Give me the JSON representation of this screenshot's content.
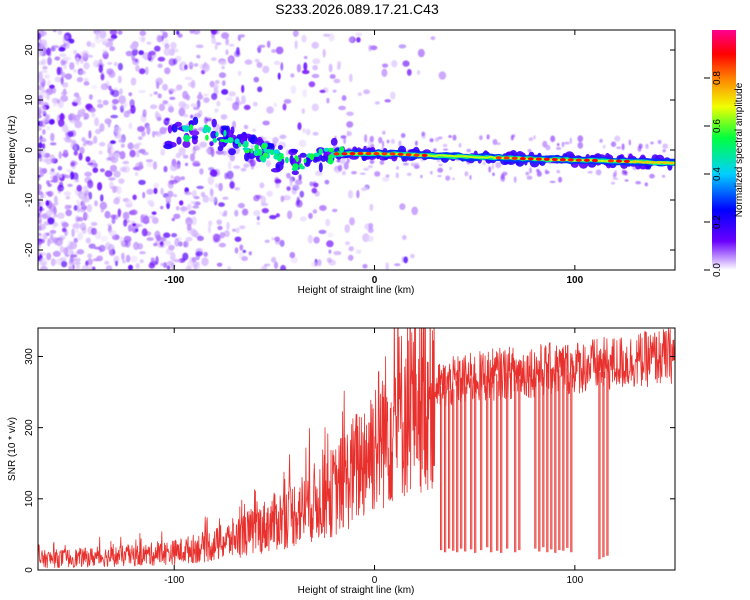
{
  "title": "S233.2026.089.17.21.C43",
  "colors": {
    "signal": "#e8302d",
    "axis": "#000000",
    "background": "#ffffff"
  },
  "chart_data": [
    {
      "type": "heatmap",
      "panel": "top",
      "xlabel": "Height of straight line (km)",
      "ylabel": "Frequency (Hz)",
      "xlim": [
        -168,
        150
      ],
      "ylim": [
        -24,
        24
      ],
      "xticks": [
        -100,
        0,
        100
      ],
      "xtick_labels": [
        "-100",
        "0",
        "100"
      ],
      "yticks": [
        -20,
        -10,
        0,
        10,
        20
      ],
      "ytick_labels": [
        "-20",
        "-10",
        "0",
        "10",
        "20"
      ],
      "ridge": {
        "description": "Doppler frequency ridge of the received echo",
        "x": [
          -100,
          -90,
          -80,
          -70,
          -60,
          -50,
          -40,
          -35,
          -30,
          -20,
          -10,
          0,
          10,
          20,
          40,
          60,
          80,
          100,
          120,
          140,
          150
        ],
        "freq": [
          3,
          3.5,
          3,
          2,
          0.5,
          -1.5,
          -2.5,
          -2,
          -1.5,
          -0.8,
          -0.7,
          -0.7,
          -0.8,
          -1,
          -1.3,
          -1.5,
          -1.8,
          -2,
          -2.2,
          -2.5,
          -2.6
        ],
        "peak_amplitude_range": [
          -20,
          80
        ]
      },
      "noise_extent": {
        "dense_until_x": -100,
        "sparse_until_x": -20
      },
      "colorbar": {
        "label": "Normalized spectral amplitude",
        "range": [
          0.0,
          1.0
        ],
        "ticks": [
          0.0,
          0.2,
          0.4,
          0.6,
          0.8
        ],
        "tick_labels": [
          "0.0",
          "0.2",
          "0.4",
          "0.6",
          "0.8"
        ],
        "colormap": [
          "#ffffff",
          "#6a00ff",
          "#0000ff",
          "#00d0ff",
          "#00ff40",
          "#f0ff00",
          "#ff8000",
          "#ff0000",
          "#ff0090"
        ]
      }
    },
    {
      "type": "line",
      "panel": "bottom",
      "xlabel": "Height of straight line (km)",
      "ylabel": "SNR (10 * v/v)",
      "xlim": [
        -168,
        150
      ],
      "ylim": [
        0,
        340
      ],
      "xticks": [
        -100,
        0,
        100
      ],
      "xtick_labels": [
        "-100",
        "0",
        "100"
      ],
      "yticks": [
        0,
        100,
        200,
        300
      ],
      "ytick_labels": [
        "0",
        "100",
        "200",
        "300"
      ],
      "series": [
        {
          "name": "SNR",
          "color": "#e8302d",
          "trend_x": [
            -168,
            -140,
            -120,
            -100,
            -80,
            -60,
            -40,
            -20,
            -10,
            0,
            10,
            20,
            30,
            40,
            60,
            80,
            100,
            120,
            140,
            150
          ],
          "trend_y": [
            15,
            18,
            20,
            25,
            35,
            55,
            80,
            110,
            140,
            180,
            210,
            240,
            255,
            265,
            275,
            280,
            285,
            290,
            298,
            302
          ],
          "dropouts": [
            {
              "x": 33,
              "y": 28
            },
            {
              "x": 35,
              "y": 25
            },
            {
              "x": 37,
              "y": 30
            },
            {
              "x": 39,
              "y": 27
            },
            {
              "x": 41,
              "y": 25
            },
            {
              "x": 43,
              "y": 30
            },
            {
              "x": 45,
              "y": 26
            },
            {
              "x": 48,
              "y": 29
            },
            {
              "x": 50,
              "y": 24
            },
            {
              "x": 53,
              "y": 28
            },
            {
              "x": 56,
              "y": 32
            },
            {
              "x": 58,
              "y": 25
            },
            {
              "x": 61,
              "y": 27
            },
            {
              "x": 63,
              "y": 24
            },
            {
              "x": 66,
              "y": 30
            },
            {
              "x": 70,
              "y": 25
            },
            {
              "x": 72,
              "y": 28
            },
            {
              "x": 80,
              "y": 30
            },
            {
              "x": 82,
              "y": 26
            },
            {
              "x": 84,
              "y": 32
            },
            {
              "x": 86,
              "y": 25
            },
            {
              "x": 88,
              "y": 29
            },
            {
              "x": 90,
              "y": 24
            },
            {
              "x": 92,
              "y": 28
            },
            {
              "x": 94,
              "y": 27
            },
            {
              "x": 96,
              "y": 31
            },
            {
              "x": 98,
              "y": 25
            },
            {
              "x": 112,
              "y": 15
            },
            {
              "x": 114,
              "y": 18
            },
            {
              "x": 116,
              "y": 20
            }
          ]
        }
      ]
    }
  ]
}
